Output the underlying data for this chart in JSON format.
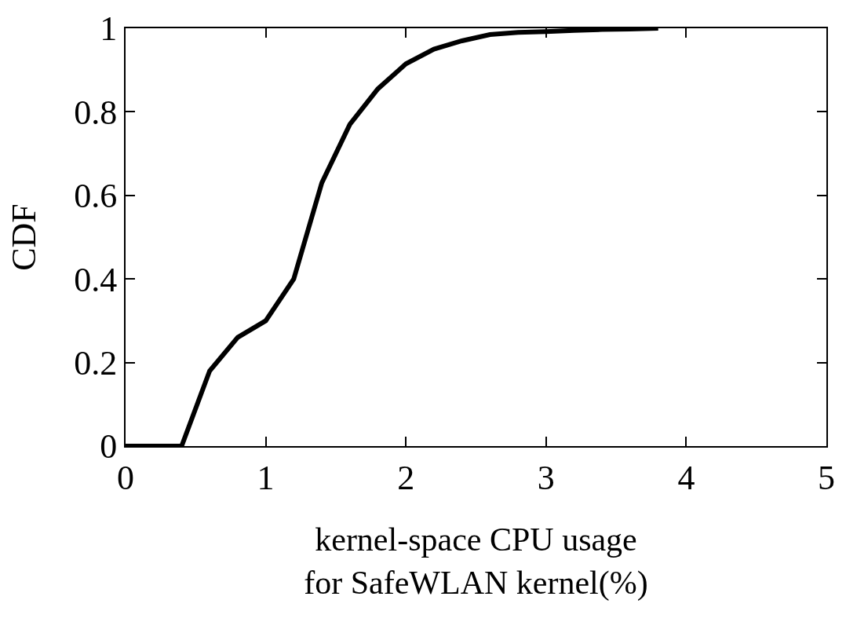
{
  "chart_data": {
    "type": "line",
    "xlabel": "kernel-space CPU usage\nfor SafeWLAN kernel(%)",
    "ylabel": "CDF",
    "x": [
      0,
      0.4,
      0.6,
      0.8,
      1.0,
      1.2,
      1.4,
      1.6,
      1.8,
      2.0,
      2.2,
      2.4,
      2.6,
      2.8,
      3.0,
      3.2,
      3.4,
      3.6,
      3.8
    ],
    "series": [
      {
        "color": "#000000",
        "values": [
          0,
          0,
          0.18,
          0.26,
          0.3,
          0.4,
          0.63,
          0.77,
          0.855,
          0.915,
          0.95,
          0.97,
          0.985,
          0.99,
          0.992,
          0.995,
          0.997,
          0.998,
          1.0
        ]
      }
    ],
    "xlim": [
      0,
      5
    ],
    "xticks": [
      0,
      1,
      2,
      3,
      4,
      5
    ],
    "ylim": [
      0,
      1
    ],
    "yticks": [
      0,
      0.2,
      0.4,
      0.6,
      0.8,
      1
    ],
    "grid": false,
    "legend": false,
    "marker": "none",
    "line_style": "solid"
  }
}
